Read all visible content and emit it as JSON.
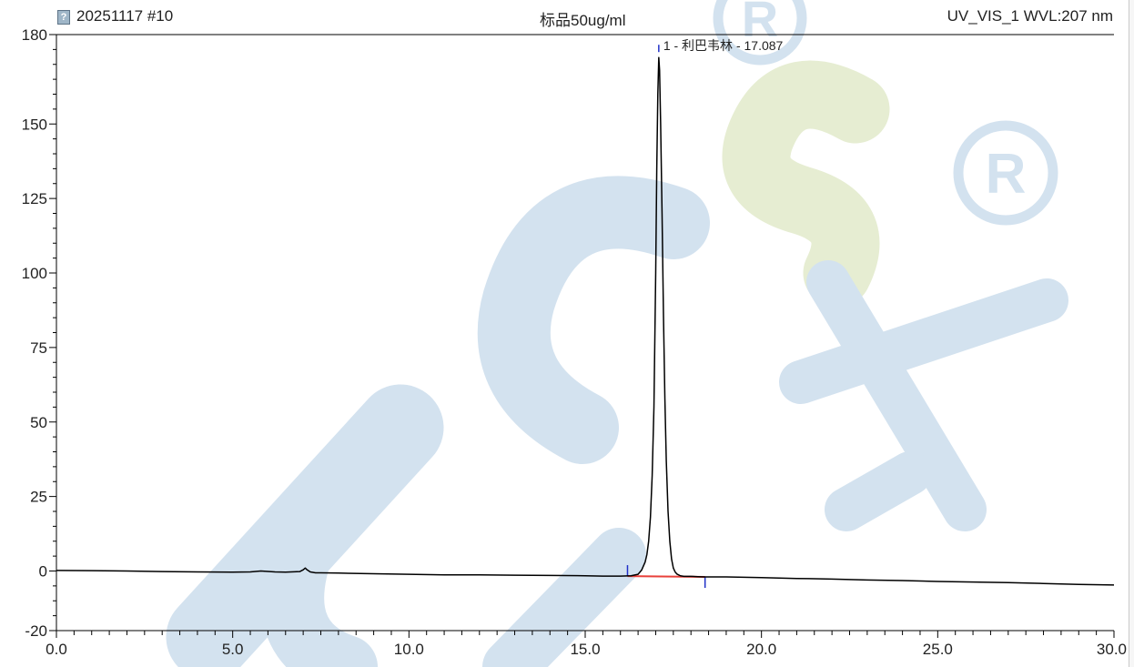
{
  "header": {
    "injection": "20251117 #10",
    "sample": "标品50ug/ml",
    "channel": "UV_VIS_1 WVL:207 nm"
  },
  "icons": {
    "document": "document-icon",
    "watermark_registered": "registered-mark-icon"
  },
  "colors": {
    "trace": "#000000",
    "baseline": "#e8403a",
    "peak_marker": "#2130c8",
    "watermark_blue": "#d3e2ef",
    "watermark_green": "#e6edd2"
  },
  "chart_data": {
    "type": "line",
    "title": "",
    "xlabel": "",
    "ylabel": "",
    "xlim": [
      0.0,
      30.0
    ],
    "ylim": [
      -20,
      180
    ],
    "x_ticks": [
      0.0,
      5.0,
      10.0,
      15.0,
      20.0,
      25.0,
      30.0
    ],
    "x_tick_labels": [
      "0.0",
      "5.0",
      "10.0",
      "15.0",
      "20.0",
      "25.0",
      "30.0"
    ],
    "y_ticks": [
      -20,
      0,
      25,
      50,
      75,
      100,
      125,
      150,
      180
    ],
    "y_tick_labels": [
      "-20",
      "0",
      "25",
      "50",
      "75",
      "100",
      "125",
      "150",
      "180"
    ],
    "grid": false,
    "series": [
      {
        "x": [
          0.0,
          1.0,
          2.0,
          3.0,
          4.0,
          5.0,
          5.5,
          5.8,
          6.2,
          6.5,
          6.9,
          7.0,
          7.06,
          7.1,
          7.2,
          7.35,
          7.5,
          8.0,
          9.0,
          10.0,
          11.0,
          12.0,
          13.0,
          14.0,
          15.0,
          15.5,
          16.0,
          16.3,
          16.5,
          16.6,
          16.7,
          16.75,
          16.8,
          16.85,
          16.9,
          16.95,
          17.0,
          17.03,
          17.06,
          17.087,
          17.11,
          17.14,
          17.18,
          17.22,
          17.26,
          17.3,
          17.35,
          17.4,
          17.45,
          17.5,
          17.55,
          17.6,
          17.7,
          17.8,
          18.0,
          18.2,
          18.4,
          18.6,
          19.0,
          19.5,
          20.0,
          21.0,
          22.0,
          23.0,
          24.0,
          25.0,
          26.0,
          27.0,
          28.0,
          29.0,
          30.0
        ],
        "y": [
          0.2,
          0.1,
          0.0,
          -0.2,
          -0.3,
          -0.4,
          -0.3,
          0.0,
          -0.3,
          -0.4,
          -0.2,
          0.4,
          1.0,
          0.5,
          -0.3,
          -0.6,
          -0.6,
          -0.7,
          -0.9,
          -1.1,
          -1.3,
          -1.3,
          -1.4,
          -1.5,
          -1.6,
          -1.7,
          -1.7,
          -1.6,
          -1.1,
          0.3,
          3.0,
          5.5,
          10.0,
          18.0,
          32.0,
          55.0,
          100.0,
          135.0,
          160.0,
          172.3,
          168.0,
          150.0,
          120.0,
          86.0,
          58.0,
          37.0,
          20.0,
          10.0,
          4.0,
          1.0,
          -0.3,
          -1.0,
          -1.6,
          -1.8,
          -1.8,
          -1.9,
          -2.0,
          -2.0,
          -2.0,
          -2.1,
          -2.2,
          -2.5,
          -2.7,
          -3.0,
          -3.2,
          -3.5,
          -3.7,
          -3.9,
          -4.2,
          -4.5,
          -4.7
        ]
      }
    ],
    "integration": {
      "baseline": {
        "x": [
          16.2,
          18.4
        ],
        "y": [
          -1.7,
          -2.0
        ]
      },
      "start_marker_x": 16.2,
      "end_marker_x": 18.4
    },
    "peaks": [
      {
        "number": 1,
        "name": "利巴韦林",
        "retention_time": 17.087,
        "label": "1 - 利巴韦林 - 17.087",
        "height": 172.3
      }
    ]
  }
}
